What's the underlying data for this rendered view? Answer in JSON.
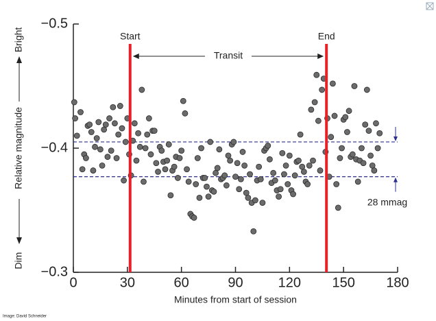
{
  "chart_data": {
    "type": "scatter",
    "xlabel": "Minutes from start of session",
    "ylabel": "Relative magnitude",
    "ylabel_top": "Bright",
    "ylabel_bottom": "Dim",
    "xlim": [
      0,
      180
    ],
    "xticks": [
      0,
      30,
      60,
      90,
      120,
      150,
      180
    ],
    "ylim": [
      -0.3,
      -0.5
    ],
    "yticks": [
      {
        "value": -0.5,
        "label": "−0.5"
      },
      {
        "value": -0.4,
        "label": "−0.4"
      },
      {
        "value": -0.3,
        "label": "−0.3"
      }
    ],
    "color": "#6b6b6b",
    "vlines": [
      {
        "x": 31.5,
        "label": "Start"
      },
      {
        "x": 140.5,
        "label": "End"
      }
    ],
    "vline_color": "#e8202a",
    "span_label": "Transit",
    "hlines": [
      -0.405,
      -0.377
    ],
    "hline_color": "#2b2f8f",
    "depth_label": "28 mmag",
    "credit": "Image: David Schneider",
    "x": [
      0.5,
      1,
      2,
      4,
      5,
      6,
      7,
      8,
      9,
      10,
      11,
      12,
      13,
      14,
      15,
      16,
      17,
      18,
      19,
      20,
      21,
      22,
      23,
      24,
      25,
      26,
      27,
      28,
      29,
      30,
      31,
      32,
      33,
      34,
      35,
      36,
      37,
      38,
      39,
      40,
      41,
      42,
      43,
      44,
      45,
      46,
      47,
      48,
      49,
      50,
      51,
      52,
      53,
      54,
      55,
      56,
      57,
      58,
      59,
      60,
      61,
      62,
      63,
      64,
      65,
      66,
      67,
      68,
      69,
      70,
      71,
      72,
      73,
      74,
      75,
      76,
      77,
      78,
      79,
      80,
      81,
      82,
      83,
      84,
      85,
      86,
      87,
      88,
      89,
      90,
      91,
      92,
      93,
      94,
      95,
      96,
      97,
      98,
      99,
      100,
      101,
      102,
      103,
      104,
      105,
      106,
      107,
      108,
      109,
      110,
      111,
      112,
      113,
      114,
      115,
      116,
      117,
      118,
      119,
      120,
      121,
      122,
      123,
      124,
      125,
      126,
      127,
      128,
      129,
      130,
      131,
      132,
      133,
      134,
      135,
      136,
      137,
      138,
      139,
      140,
      141,
      142,
      143,
      144,
      145,
      146,
      147,
      148,
      149,
      150,
      151,
      152,
      153,
      154,
      155,
      156,
      157,
      158,
      159,
      160,
      161,
      162,
      163,
      164,
      165,
      166,
      167,
      168,
      169,
      170
    ],
    "y": [
      -0.437,
      -0.424,
      -0.41,
      -0.429,
      -0.383,
      -0.395,
      -0.392,
      -0.418,
      -0.419,
      -0.413,
      -0.382,
      -0.401,
      -0.408,
      -0.421,
      -0.399,
      -0.386,
      -0.415,
      -0.419,
      -0.393,
      -0.424,
      -0.398,
      -0.433,
      -0.42,
      -0.392,
      -0.411,
      -0.434,
      -0.416,
      -0.374,
      -0.405,
      -0.424,
      -0.395,
      -0.378,
      -0.406,
      -0.42,
      -0.39,
      -0.412,
      -0.401,
      -0.447,
      -0.373,
      -0.4,
      -0.411,
      -0.424,
      -0.395,
      -0.414,
      -0.414,
      -0.388,
      -0.381,
      -0.401,
      -0.398,
      -0.389,
      -0.383,
      -0.39,
      -0.403,
      -0.362,
      -0.382,
      -0.385,
      -0.393,
      -0.376,
      -0.392,
      -0.398,
      -0.438,
      -0.428,
      -0.383,
      -0.373,
      -0.347,
      -0.345,
      -0.344,
      -0.371,
      -0.392,
      -0.36,
      -0.4,
      -0.376,
      -0.376,
      -0.369,
      -0.361,
      -0.405,
      -0.366,
      -0.365,
      -0.38,
      -0.384,
      -0.399,
      -0.375,
      -0.376,
      -0.378,
      -0.37,
      -0.394,
      -0.39,
      -0.403,
      -0.405,
      -0.377,
      -0.388,
      -0.367,
      -0.375,
      -0.397,
      -0.386,
      -0.364,
      -0.36,
      -0.379,
      -0.356,
      -0.333,
      -0.358,
      -0.374,
      -0.385,
      -0.375,
      -0.356,
      -0.398,
      -0.4,
      -0.402,
      -0.391,
      -0.372,
      -0.38,
      -0.374,
      -0.366,
      -0.361,
      -0.367,
      -0.396,
      -0.379,
      -0.386,
      -0.371,
      -0.394,
      -0.366,
      -0.363,
      -0.378,
      -0.389,
      -0.39,
      -0.411,
      -0.385,
      -0.381,
      -0.373,
      -0.371,
      -0.386,
      -0.431,
      -0.39,
      -0.437,
      -0.459,
      -0.422,
      -0.382,
      -0.447,
      -0.456,
      -0.397,
      -0.424,
      -0.377,
      -0.409,
      -0.452,
      -0.426,
      -0.371,
      -0.352,
      -0.392,
      -0.4,
      -0.423,
      -0.425,
      -0.413,
      -0.43,
      -0.393,
      -0.395,
      -0.45,
      -0.391,
      -0.373,
      -0.39,
      -0.4,
      -0.388,
      -0.419,
      -0.447,
      -0.414,
      -0.394,
      -0.386,
      -0.382,
      -0.42,
      -0.4,
      -0.412
    ]
  }
}
